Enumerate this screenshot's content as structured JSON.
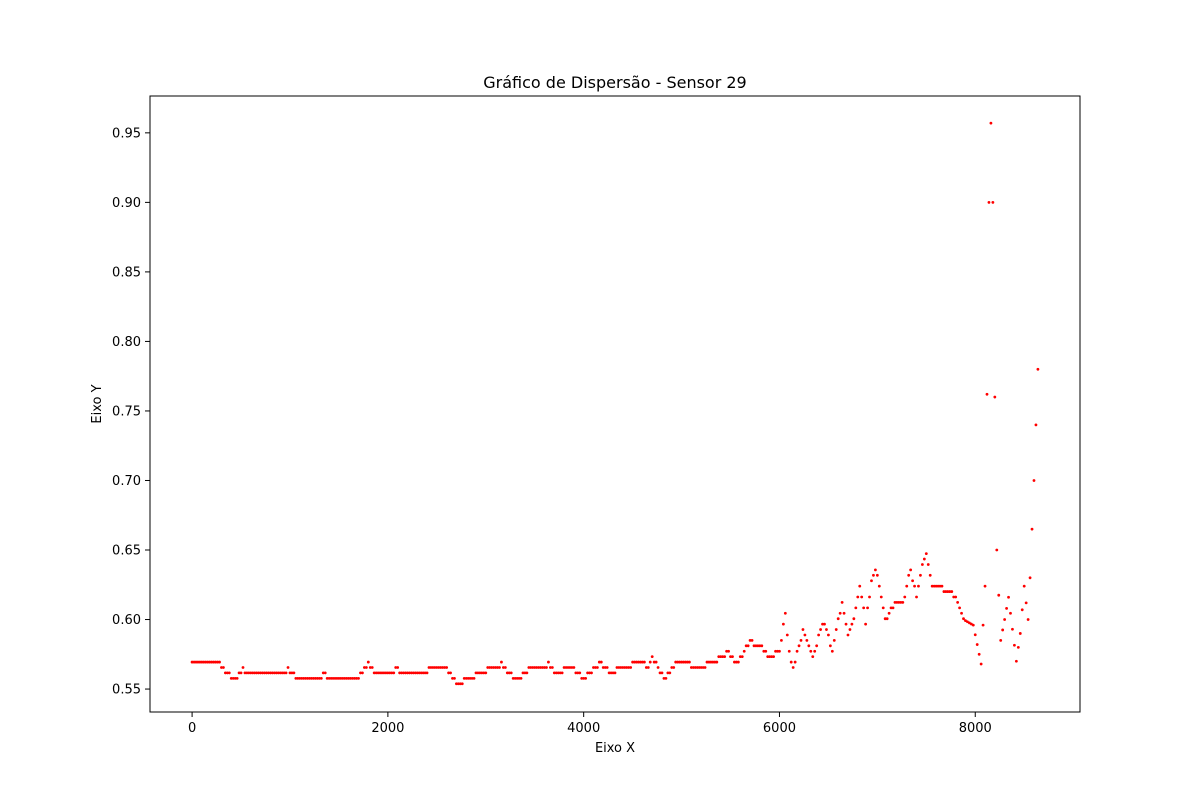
{
  "chart_data": {
    "type": "scatter",
    "title": "Gráfico de Dispersão - Sensor 29",
    "xlabel": "Eixo X",
    "ylabel": "Eixo Y",
    "xlim": [
      -430,
      9070
    ],
    "ylim": [
      0.5335,
      0.9765
    ],
    "xticks": [
      0,
      2000,
      4000,
      6000,
      8000
    ],
    "xtick_labels": [
      "0",
      "2000",
      "4000",
      "6000",
      "8000"
    ],
    "yticks": [
      0.55,
      0.6,
      0.65,
      0.7,
      0.75,
      0.8,
      0.85,
      0.9,
      0.95
    ],
    "ytick_labels": [
      "0.55",
      "0.60",
      "0.65",
      "0.70",
      "0.75",
      "0.80",
      "0.85",
      "0.90",
      "0.95"
    ],
    "grid": false,
    "marker_color": "#ff0000",
    "series": [
      {
        "name": "Sensor 29",
        "x_start": 0,
        "x_step": 20,
        "count": 433,
        "anchors": [
          [
            0,
            0.569
          ],
          [
            280,
            0.569
          ],
          [
            300,
            0.565
          ],
          [
            380,
            0.561
          ],
          [
            430,
            0.557
          ],
          [
            480,
            0.561
          ],
          [
            520,
            0.565
          ],
          [
            560,
            0.561
          ],
          [
            940,
            0.561
          ],
          [
            980,
            0.565
          ],
          [
            1030,
            0.561
          ],
          [
            1100,
            0.557
          ],
          [
            1300,
            0.557
          ],
          [
            1340,
            0.561
          ],
          [
            1400,
            0.557
          ],
          [
            1700,
            0.557
          ],
          [
            1760,
            0.565
          ],
          [
            1800,
            0.569
          ],
          [
            1860,
            0.561
          ],
          [
            2040,
            0.561
          ],
          [
            2080,
            0.565
          ],
          [
            2140,
            0.561
          ],
          [
            2400,
            0.561
          ],
          [
            2420,
            0.565
          ],
          [
            2600,
            0.565
          ],
          [
            2660,
            0.557
          ],
          [
            2730,
            0.553
          ],
          [
            2800,
            0.557
          ],
          [
            2940,
            0.561
          ],
          [
            3040,
            0.565
          ],
          [
            3120,
            0.565
          ],
          [
            3160,
            0.569
          ],
          [
            3240,
            0.561
          ],
          [
            3300,
            0.557
          ],
          [
            3400,
            0.561
          ],
          [
            3460,
            0.565
          ],
          [
            3600,
            0.565
          ],
          [
            3640,
            0.569
          ],
          [
            3700,
            0.561
          ],
          [
            3760,
            0.561
          ],
          [
            3800,
            0.565
          ],
          [
            3900,
            0.565
          ],
          [
            3940,
            0.561
          ],
          [
            4000,
            0.557
          ],
          [
            4060,
            0.561
          ],
          [
            4120,
            0.565
          ],
          [
            4160,
            0.569
          ],
          [
            4220,
            0.565
          ],
          [
            4300,
            0.561
          ],
          [
            4360,
            0.565
          ],
          [
            4460,
            0.565
          ],
          [
            4500,
            0.569
          ],
          [
            4600,
            0.569
          ],
          [
            4660,
            0.565
          ],
          [
            4700,
            0.573
          ],
          [
            4760,
            0.565
          ],
          [
            4820,
            0.557
          ],
          [
            4900,
            0.565
          ],
          [
            4960,
            0.569
          ],
          [
            5080,
            0.569
          ],
          [
            5120,
            0.565
          ],
          [
            5320,
            0.569
          ],
          [
            5420,
            0.573
          ],
          [
            5480,
            0.577
          ],
          [
            5560,
            0.569
          ],
          [
            5640,
            0.577
          ],
          [
            5700,
            0.584
          ],
          [
            5820,
            0.58
          ],
          [
            5900,
            0.573
          ],
          [
            6000,
            0.577
          ],
          [
            6060,
            0.605
          ],
          [
            6100,
            0.576
          ],
          [
            6140,
            0.565
          ],
          [
            6240,
            0.592
          ],
          [
            6300,
            0.581
          ],
          [
            6340,
            0.572
          ],
          [
            6420,
            0.592
          ],
          [
            6460,
            0.598
          ],
          [
            6540,
            0.577
          ],
          [
            6600,
            0.6
          ],
          [
            6640,
            0.612
          ],
          [
            6700,
            0.588
          ],
          [
            6760,
            0.6
          ],
          [
            6820,
            0.624
          ],
          [
            6880,
            0.598
          ],
          [
            6940,
            0.628
          ],
          [
            6980,
            0.636
          ],
          [
            7020,
            0.624
          ],
          [
            7080,
            0.6
          ],
          [
            7160,
            0.61
          ],
          [
            7260,
            0.612
          ],
          [
            7340,
            0.636
          ],
          [
            7400,
            0.616
          ],
          [
            7460,
            0.64
          ],
          [
            7500,
            0.647
          ],
          [
            7560,
            0.624
          ],
          [
            7720,
            0.621
          ],
          [
            7800,
            0.617
          ],
          [
            7880,
            0.6
          ],
          [
            7980,
            0.596
          ],
          [
            8060,
            0.568
          ],
          [
            8100,
            0.624
          ],
          [
            8140,
            0.9
          ],
          [
            8160,
            0.957
          ],
          [
            8180,
            0.9
          ],
          [
            8200,
            0.76
          ],
          [
            8220,
            0.65
          ],
          [
            8260,
            0.585
          ],
          [
            8300,
            0.6
          ],
          [
            8340,
            0.616
          ],
          [
            8420,
            0.57
          ],
          [
            8460,
            0.59
          ],
          [
            8500,
            0.624
          ],
          [
            8540,
            0.6
          ],
          [
            8560,
            0.63
          ],
          [
            8600,
            0.7
          ],
          [
            8640,
            0.78
          ]
        ]
      }
    ]
  }
}
